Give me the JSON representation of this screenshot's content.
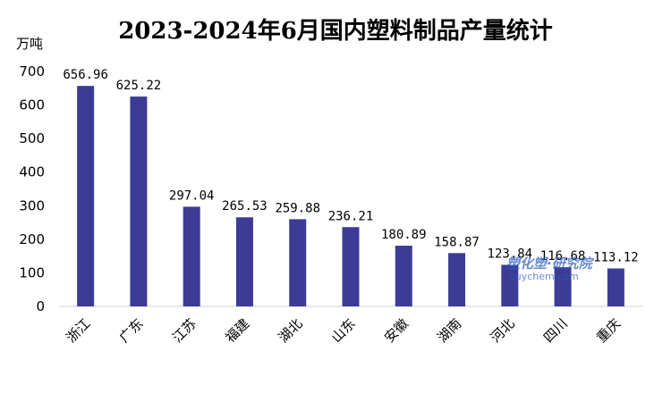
{
  "chart_data": {
    "type": "bar",
    "title": "2023-2024年6月国内塑料制品产量统计",
    "ylabel": "万吨",
    "ylim": [
      0,
      700
    ],
    "yticks": [
      0,
      100,
      200,
      300,
      400,
      500,
      600,
      700
    ],
    "categories": [
      "浙江",
      "广东",
      "江苏",
      "福建",
      "湖北",
      "山东",
      "安徽",
      "湖南",
      "河北",
      "四川",
      "重庆"
    ],
    "values": [
      656.96,
      625.22,
      297.04,
      265.53,
      259.88,
      236.21,
      180.89,
      158.87,
      123.84,
      116.68,
      113.12
    ],
    "value_labels": [
      "656.96",
      "625.22",
      "297.04",
      "265.53",
      "259.88",
      "236.21",
      "180.89",
      "158.87",
      "123.84",
      "116.68",
      "113.12"
    ],
    "bar_color": "#3c3c96",
    "grid": false,
    "legend": "none"
  },
  "watermark": {
    "line1": "塑化塑·研究院",
    "line2": "suychem.com"
  }
}
